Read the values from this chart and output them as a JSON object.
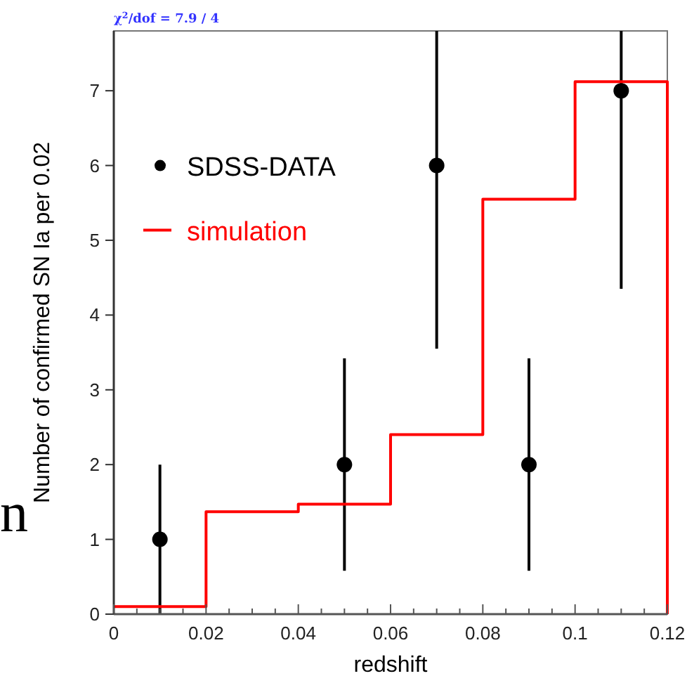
{
  "chart_data": {
    "type": "scatter",
    "xlabel": "redshift",
    "ylabel": "Number of confirmed SN Ia per 0.02",
    "annotations": [
      "χ$^{2}$/dof = 7.9 / 4",
      "n"
    ],
    "series": [
      {
        "name": "SDSS-DATA",
        "color": "#000000",
        "marker": "circle",
        "x": [
          0.01,
          0.05,
          0.07,
          0.09,
          0.11
        ],
        "values": [
          1,
          2,
          6,
          2,
          7
        ],
        "errors": [
          1,
          1.42,
          [
            3.55,
            7.8
          ],
          1.42,
          [
            4.35,
            7.8
          ]
        ]
      },
      {
        "name": "simulation",
        "type": "step",
        "color": "#ff0000",
        "x": [
          0,
          0.02,
          0.04,
          0.06,
          0.08,
          0.1,
          0.12
        ],
        "values": [
          0.1,
          1.37,
          1.47,
          2.4,
          5.55,
          7.12,
          0
        ]
      }
    ],
    "xlim": [
      0,
      0.12
    ],
    "ylim": [
      0,
      7.8
    ],
    "xticks": [
      0,
      {
        "value": 0.005,
        "label": null
      },
      {
        "value": 0.01,
        "label": null
      },
      {
        "value": 0.015,
        "label": null
      },
      0.02,
      {
        "value": 0.025,
        "label": null
      },
      {
        "value": 0.03,
        "label": null
      },
      {
        "value": 0.035,
        "label": null
      },
      0.04,
      {
        "value": 0.045,
        "label": null
      },
      {
        "value": 0.05,
        "label": null
      },
      {
        "value": 0.055,
        "label": null
      },
      0.06,
      {
        "value": 0.065,
        "label": null
      },
      {
        "value": 0.07,
        "label": null
      },
      {
        "value": 0.075,
        "label": null
      },
      0.08,
      {
        "value": 0.085,
        "label": null
      },
      {
        "value": 0.09,
        "label": null
      },
      {
        "value": 0.095,
        "label": null
      },
      0.1,
      {
        "value": 0.105,
        "label": null
      },
      {
        "value": 0.11,
        "label": null
      },
      {
        "value": 0.115,
        "label": null
      },
      0.12
    ],
    "yticks": [
      0,
      1,
      2,
      3,
      4,
      5,
      6,
      7
    ],
    "legend": "top left"
  }
}
